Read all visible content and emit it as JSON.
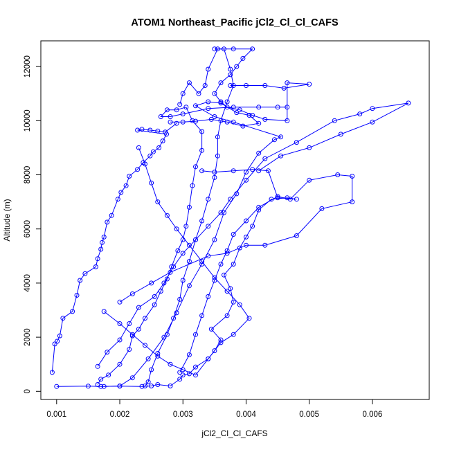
{
  "chart_data": {
    "type": "line",
    "title": "ATOM1 Northeast_Pacific jCl2_Cl_Cl_CAFS",
    "xlabel": "jCl2_Cl_Cl_CAFS",
    "ylabel": "Altitude (m)",
    "xlim": [
      0.00075,
      0.0069
    ],
    "ylim": [
      -300,
      12950
    ],
    "xticks": [
      0.001,
      0.002,
      0.003,
      0.004,
      0.005,
      0.006
    ],
    "xtick_labels": [
      "0.001",
      "0.002",
      "0.003",
      "0.004",
      "0.005",
      "0.006"
    ],
    "yticks": [
      0,
      2000,
      4000,
      6000,
      8000,
      10000,
      12000
    ],
    "ytick_labels": [
      "0",
      "2000",
      "4000",
      "6000",
      "8000",
      "10000",
      "12000"
    ],
    "grid": false,
    "series_color": "#0000ff",
    "marker": "open-circle",
    "series": [
      {
        "values": [
          [
            0.00093,
            700
          ],
          [
            0.00097,
            1750
          ],
          [
            0.00101,
            1850
          ],
          [
            0.00105,
            2050
          ],
          [
            0.0011,
            2700
          ],
          [
            0.00125,
            2950
          ],
          [
            0.00132,
            3550
          ],
          [
            0.00137,
            4100
          ],
          [
            0.00145,
            4350
          ],
          [
            0.00162,
            4600
          ],
          [
            0.00165,
            4900
          ],
          [
            0.0017,
            5250
          ],
          [
            0.00172,
            5500
          ],
          [
            0.00175,
            5700
          ],
          [
            0.0018,
            6250
          ],
          [
            0.00187,
            6500
          ],
          [
            0.00197,
            7100
          ],
          [
            0.00202,
            7350
          ],
          [
            0.0021,
            7600
          ],
          [
            0.00215,
            7950
          ],
          [
            0.00228,
            8200
          ],
          [
            0.00237,
            8450
          ],
          [
            0.00248,
            8700
          ],
          [
            0.00253,
            8850
          ],
          [
            0.00262,
            9000
          ],
          [
            0.00268,
            9250
          ],
          [
            0.00274,
            9500
          ],
          [
            0.00228,
            9650
          ],
          [
            0.00235,
            9680
          ],
          [
            0.00248,
            9650
          ],
          [
            0.0026,
            9620
          ],
          [
            0.00272,
            9580
          ],
          [
            0.0029,
            9900
          ]
        ]
      },
      {
        "values": [
          [
            0.001,
            180
          ],
          [
            0.0015,
            190
          ],
          [
            0.0017,
            180
          ],
          [
            0.002,
            190
          ],
          [
            0.00235,
            180
          ],
          [
            0.0025,
            200
          ],
          [
            0.0026,
            250
          ],
          [
            0.0028,
            200
          ],
          [
            0.00295,
            450
          ],
          [
            0.003,
            600
          ],
          [
            0.0031,
            650
          ],
          [
            0.0032,
            900
          ],
          [
            0.0034,
            1200
          ],
          [
            0.0035,
            1500
          ],
          [
            0.0036,
            1900
          ],
          [
            0.00345,
            2300
          ],
          [
            0.0037,
            2800
          ],
          [
            0.0038,
            3300
          ],
          [
            0.00375,
            3800
          ],
          [
            0.00365,
            4300
          ],
          [
            0.0038,
            4700
          ],
          [
            0.0039,
            5300
          ],
          [
            0.004,
            5700
          ],
          [
            0.0041,
            6100
          ],
          [
            0.0042,
            6700
          ],
          [
            0.0044,
            7100
          ],
          [
            0.00465,
            7150
          ],
          [
            0.0048,
            7100
          ],
          [
            0.0045,
            7150
          ],
          [
            0.00435,
            8150
          ],
          [
            0.0041,
            8200
          ],
          [
            0.0038,
            8150
          ],
          [
            0.0035,
            8100
          ],
          [
            0.0033,
            8150
          ]
        ]
      },
      {
        "values": [
          [
            0.00165,
            250
          ],
          [
            0.0017,
            450
          ],
          [
            0.00182,
            600
          ],
          [
            0.002,
            1000
          ],
          [
            0.00215,
            1550
          ],
          [
            0.0022,
            2050
          ],
          [
            0.0023,
            2300
          ],
          [
            0.0024,
            2700
          ],
          [
            0.00255,
            3200
          ],
          [
            0.00265,
            3700
          ],
          [
            0.00275,
            4150
          ],
          [
            0.00282,
            4600
          ],
          [
            0.00292,
            5200
          ],
          [
            0.003,
            5600
          ],
          [
            0.00305,
            6100
          ],
          [
            0.0031,
            6800
          ],
          [
            0.00315,
            7600
          ],
          [
            0.0032,
            8300
          ],
          [
            0.0033,
            8900
          ],
          [
            0.0033,
            9600
          ],
          [
            0.00315,
            10000
          ],
          [
            0.00305,
            10500
          ],
          [
            0.0029,
            10400
          ],
          [
            0.00275,
            10400
          ],
          [
            0.00265,
            10150
          ],
          [
            0.0028,
            10150
          ],
          [
            0.003,
            10250
          ],
          [
            0.0034,
            10450
          ],
          [
            0.0038,
            10500
          ],
          [
            0.0042,
            10500
          ],
          [
            0.0045,
            10500
          ],
          [
            0.00465,
            10500
          ]
        ]
      },
      {
        "values": [
          [
            0.00175,
            180
          ],
          [
            0.002,
            200
          ],
          [
            0.0022,
            500
          ],
          [
            0.00245,
            1200
          ],
          [
            0.0027,
            2000
          ],
          [
            0.0029,
            2900
          ],
          [
            0.0031,
            3900
          ],
          [
            0.0033,
            4700
          ],
          [
            0.0035,
            5600
          ],
          [
            0.00365,
            6600
          ],
          [
            0.00385,
            7300
          ],
          [
            0.004,
            8100
          ],
          [
            0.0042,
            8800
          ],
          [
            0.00445,
            9300
          ],
          [
            0.00455,
            9400
          ],
          [
            0.0038,
            9950
          ],
          [
            0.0035,
            10150
          ],
          [
            0.0032,
            10550
          ],
          [
            0.0034,
            10700
          ],
          [
            0.0036,
            10650
          ],
          [
            0.00385,
            10300
          ],
          [
            0.00405,
            10200
          ],
          [
            0.0042,
            9900
          ],
          [
            0.00395,
            9800
          ],
          [
            0.0037,
            9950
          ],
          [
            0.00345,
            10050
          ],
          [
            0.0032,
            9980
          ],
          [
            0.003,
            9950
          ],
          [
            0.0028,
            9950
          ]
        ]
      },
      {
        "values": [
          [
            0.0024,
            200
          ],
          [
            0.00245,
            350
          ],
          [
            0.0025,
            800
          ],
          [
            0.0026,
            1400
          ],
          [
            0.00275,
            2100
          ],
          [
            0.00285,
            2700
          ],
          [
            0.00295,
            3400
          ],
          [
            0.003,
            4100
          ],
          [
            0.0031,
            4800
          ],
          [
            0.0032,
            5600
          ],
          [
            0.0033,
            6300
          ],
          [
            0.0034,
            7100
          ],
          [
            0.0035,
            7900
          ],
          [
            0.00355,
            8700
          ],
          [
            0.00355,
            9400
          ],
          [
            0.0036,
            10000
          ],
          [
            0.0037,
            10700
          ],
          [
            0.0038,
            11300
          ],
          [
            0.00375,
            11900
          ],
          [
            0.00365,
            12650
          ],
          [
            0.00355,
            12650
          ],
          [
            0.0034,
            11900
          ],
          [
            0.00335,
            11300
          ],
          [
            0.00325,
            11000
          ],
          [
            0.0031,
            11400
          ],
          [
            0.003,
            11000
          ],
          [
            0.00295,
            10600
          ]
        ]
      },
      {
        "values": [
          [
            0.00295,
            700
          ],
          [
            0.0031,
            1350
          ],
          [
            0.0032,
            2100
          ],
          [
            0.0033,
            2800
          ],
          [
            0.0034,
            3500
          ],
          [
            0.0035,
            4100
          ],
          [
            0.0036,
            4700
          ],
          [
            0.0037,
            5200
          ],
          [
            0.0038,
            5800
          ],
          [
            0.004,
            6300
          ],
          [
            0.0042,
            6800
          ],
          [
            0.0045,
            7200
          ],
          [
            0.0047,
            7100
          ],
          [
            0.005,
            7800
          ],
          [
            0.00545,
            8000
          ],
          [
            0.00568,
            7950
          ],
          [
            0.00568,
            7000
          ],
          [
            0.0052,
            6750
          ],
          [
            0.0048,
            5750
          ],
          [
            0.0043,
            5400
          ],
          [
            0.004,
            5400
          ],
          [
            0.0037,
            5100
          ],
          [
            0.0034,
            5000
          ],
          [
            0.0028,
            4400
          ],
          [
            0.0025,
            4000
          ],
          [
            0.0022,
            3600
          ],
          [
            0.002,
            3300
          ]
        ]
      },
      {
        "values": [
          [
            0.00165,
            920
          ],
          [
            0.0018,
            1450
          ],
          [
            0.002,
            1900
          ],
          [
            0.00215,
            2500
          ],
          [
            0.0023,
            3100
          ],
          [
            0.00255,
            3500
          ],
          [
            0.0027,
            4000
          ],
          [
            0.00285,
            4600
          ],
          [
            0.003,
            5100
          ],
          [
            0.0032,
            5600
          ],
          [
            0.0034,
            6100
          ],
          [
            0.0036,
            6600
          ],
          [
            0.00375,
            7100
          ],
          [
            0.004,
            7800
          ],
          [
            0.0043,
            8600
          ],
          [
            0.0048,
            9200
          ],
          [
            0.0054,
            10000
          ],
          [
            0.0058,
            10250
          ],
          [
            0.006,
            10450
          ],
          [
            0.00657,
            10650
          ],
          [
            0.006,
            9950
          ],
          [
            0.0055,
            9500
          ],
          [
            0.005,
            9000
          ],
          [
            0.00455,
            8700
          ],
          [
            0.0042,
            8150
          ]
        ]
      },
      {
        "values": [
          [
            0.00175,
            2950
          ],
          [
            0.002,
            2500
          ],
          [
            0.0022,
            2100
          ],
          [
            0.0024,
            1700
          ],
          [
            0.0026,
            1300
          ],
          [
            0.0028,
            1000
          ],
          [
            0.003,
            800
          ],
          [
            0.0032,
            600
          ],
          [
            0.0034,
            1200
          ],
          [
            0.0036,
            1800
          ],
          [
            0.0038,
            2100
          ],
          [
            0.00405,
            2700
          ],
          [
            0.0039,
            3200
          ],
          [
            0.0037,
            3700
          ],
          [
            0.0035,
            4200
          ],
          [
            0.0033,
            4800
          ],
          [
            0.0031,
            5400
          ],
          [
            0.0029,
            6000
          ],
          [
            0.00275,
            6500
          ],
          [
            0.0026,
            7000
          ],
          [
            0.0025,
            7700
          ],
          [
            0.0024,
            8400
          ],
          [
            0.0023,
            9000
          ]
        ]
      },
      {
        "values": [
          [
            0.0035,
            12650
          ],
          [
            0.0038,
            12650
          ],
          [
            0.0041,
            12650
          ],
          [
            0.00395,
            12300
          ],
          [
            0.00385,
            12000
          ],
          [
            0.00375,
            11700
          ],
          [
            0.0036,
            11400
          ],
          [
            0.0035,
            11000
          ],
          [
            0.0036,
            10700
          ],
          [
            0.0037,
            10500
          ],
          [
            0.0039,
            10400
          ],
          [
            0.0041,
            10200
          ],
          [
            0.0043,
            10050
          ],
          [
            0.00465,
            10000
          ],
          [
            0.00465,
            11400
          ],
          [
            0.005,
            11350
          ],
          [
            0.0046,
            11200
          ],
          [
            0.0043,
            11300
          ],
          [
            0.004,
            11300
          ],
          [
            0.00375,
            11300
          ]
        ]
      }
    ]
  }
}
